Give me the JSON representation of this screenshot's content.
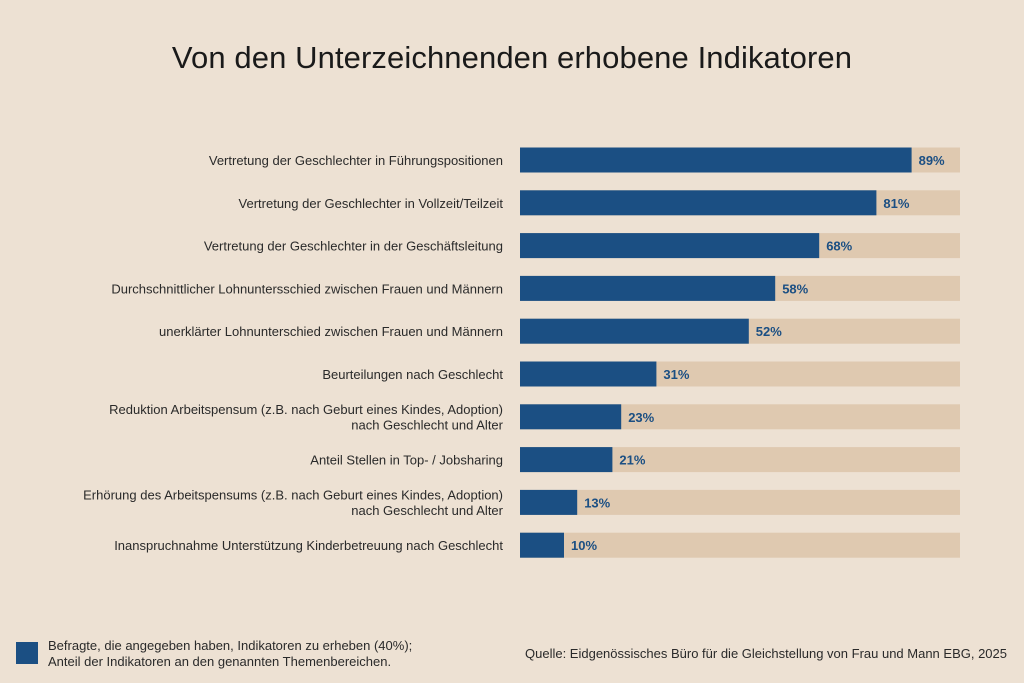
{
  "title": "Von den Unterzeichnenden erhobene Indikatoren",
  "colors": {
    "background": "#ede1d3",
    "bar": "#1b4f83",
    "track": "#dfc9b0",
    "value_label": "#1b4f83"
  },
  "chart_data": {
    "type": "bar",
    "orientation": "horizontal",
    "title": "Von den Unterzeichnenden erhobene Indikatoren",
    "xlim": [
      0,
      100
    ],
    "unit": "%",
    "grid": false,
    "categories": [
      [
        "Vertretung der Geschlechter in Führungspositionen"
      ],
      [
        "Vertretung der Geschlechter in Vollzeit/Teilzeit"
      ],
      [
        "Vertretung der Geschlechter in der Geschäftsleitung"
      ],
      [
        "Durchschnittlicher Lohnuntersschied zwischen Frauen und Männern"
      ],
      [
        "unerklärter Lohnunterschied zwischen Frauen und Männern"
      ],
      [
        "Beurteilungen nach Geschlecht"
      ],
      [
        "Reduktion Arbeitspensum (z.B. nach Geburt eines Kindes, Adoption)",
        "nach Geschlecht und Alter"
      ],
      [
        "Anteil Stellen in Top- / Jobsharing"
      ],
      [
        "Erhörung des Arbeitspensums (z.B. nach Geburt eines Kindes, Adoption)",
        "nach Geschlecht und Alter"
      ],
      [
        "Inanspruchnahme Unterstützung Kinderbetreuung nach Geschlecht"
      ]
    ],
    "values": [
      89,
      81,
      68,
      58,
      52,
      31,
      23,
      21,
      13,
      10
    ],
    "value_labels": [
      "89%",
      "81%",
      "68%",
      "58%",
      "52%",
      "31%",
      "23%",
      "21%",
      "13%",
      "10%"
    ]
  },
  "legend": {
    "line1": "Befragte, die angegeben haben, Indikatoren zu erheben (40%);",
    "line2": "Anteil der Indikatoren an den genannten Themenbereichen."
  },
  "source": "Quelle: Eidgenössisches Büro für die Gleichstellung von Frau und Mann EBG, 2025"
}
